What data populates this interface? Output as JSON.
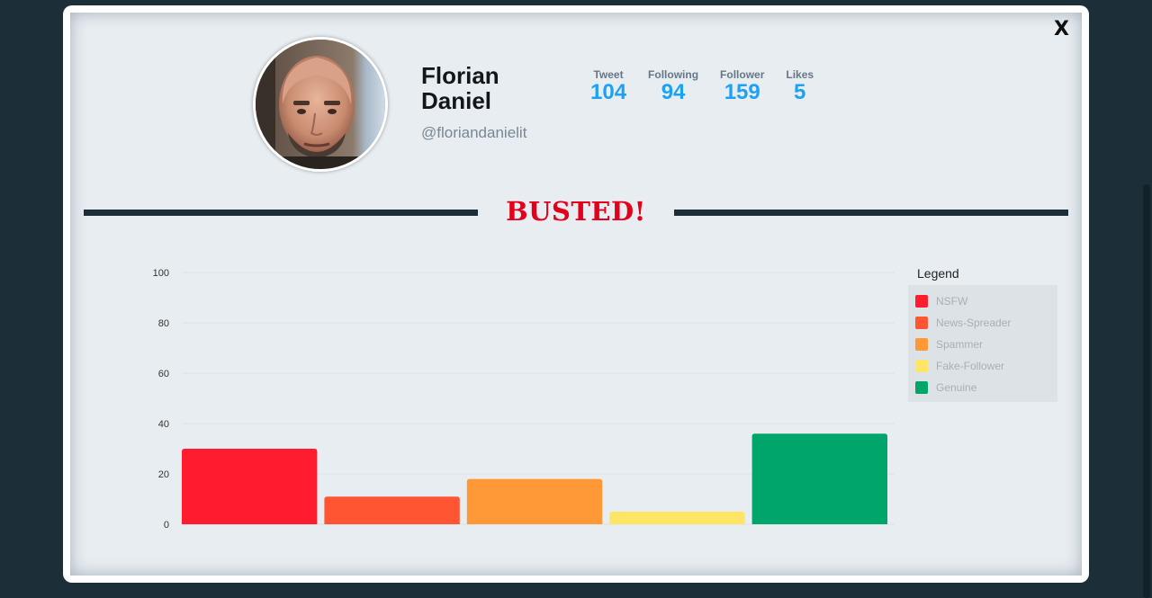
{
  "profile": {
    "name": "Florian Daniel",
    "handle": "@floriandanielit"
  },
  "stats": [
    {
      "label": "Tweet",
      "value": "104"
    },
    {
      "label": "Following",
      "value": "94"
    },
    {
      "label": "Follower",
      "value": "159"
    },
    {
      "label": "Likes",
      "value": "5"
    }
  ],
  "verdict": "BUSTED!",
  "close_label": "X",
  "legend": {
    "title": "Legend",
    "items": [
      {
        "label": "NSFW",
        "color": "#ff1c2e"
      },
      {
        "label": "News-Spreader",
        "color": "#ff5533"
      },
      {
        "label": "Spammer",
        "color": "#ff9938"
      },
      {
        "label": "Fake-Follower",
        "color": "#ffe566"
      },
      {
        "label": "Genuine",
        "color": "#00a56b"
      }
    ]
  },
  "chart_data": {
    "type": "bar",
    "categories": [
      "NSFW",
      "News-Spreader",
      "Spammer",
      "Fake-Follower",
      "Genuine"
    ],
    "values": [
      30,
      11,
      18,
      5,
      36
    ],
    "colors": [
      "#ff1c2e",
      "#ff5533",
      "#ff9938",
      "#ffe566",
      "#00a56b"
    ],
    "yticks": [
      0,
      20,
      40,
      60,
      80,
      100
    ],
    "ylim": [
      0,
      100
    ],
    "grid": true,
    "legend_position": "right"
  }
}
